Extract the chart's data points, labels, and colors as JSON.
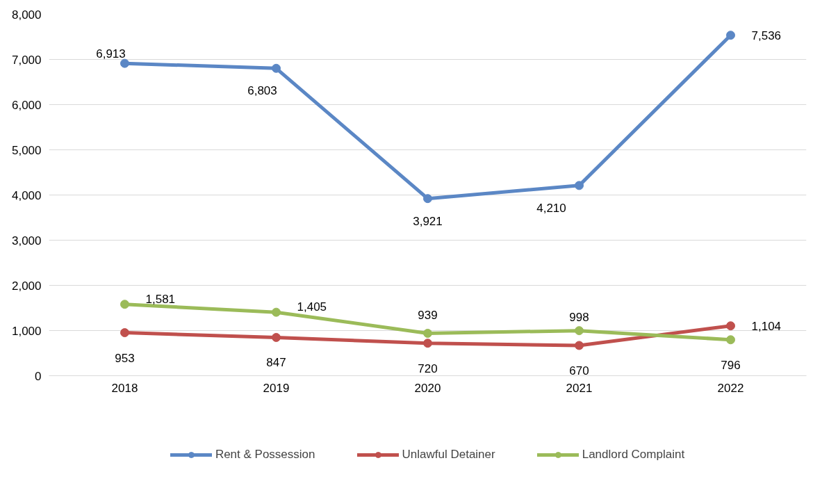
{
  "chart_data": {
    "type": "line",
    "categories": [
      "2018",
      "2019",
      "2020",
      "2021",
      "2022"
    ],
    "series": [
      {
        "name": "Rent & Possession",
        "color": "#5b87c5",
        "values": [
          6913,
          6803,
          3921,
          4210,
          7536
        ],
        "value_labels": [
          "6,913",
          "6,803",
          "3,921",
          "4,210",
          "7,536"
        ]
      },
      {
        "name": "Unlawful Detainer",
        "color": "#c0504d",
        "values": [
          953,
          847,
          720,
          670,
          1104
        ],
        "value_labels": [
          "953",
          "847",
          "720",
          "670",
          "1,104"
        ]
      },
      {
        "name": "Landlord Complaint",
        "color": "#9bbb59",
        "values": [
          1581,
          1405,
          939,
          998,
          796
        ],
        "value_labels": [
          "1,581",
          "1,405",
          "939",
          "998",
          "796"
        ]
      }
    ],
    "ylim": [
      0,
      8000
    ],
    "yticks": [
      {
        "value": 0,
        "label": "0"
      },
      {
        "value": 1000,
        "label": "1,000"
      },
      {
        "value": 2000,
        "label": "2,000"
      },
      {
        "value": 3000,
        "label": "3,000"
      },
      {
        "value": 4000,
        "label": "4,000"
      },
      {
        "value": 5000,
        "label": "5,000"
      },
      {
        "value": 6000,
        "label": "6,000"
      },
      {
        "value": 7000,
        "label": "7,000"
      },
      {
        "value": 8000,
        "label": "8,000"
      }
    ],
    "grid": "y",
    "legend": "bottom",
    "marker": "circle",
    "line_style": "solid"
  }
}
